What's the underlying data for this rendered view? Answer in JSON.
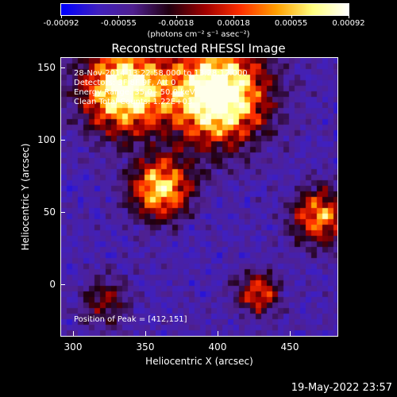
{
  "colorbar": {
    "ticks": [
      "-0.00092",
      "-0.00055",
      "-0.00018",
      "0.00018",
      "0.00055",
      "0.00092"
    ],
    "units": "(photons cm⁻² s⁻¹ asec⁻²)",
    "colors": [
      "#0000ff",
      "#4020c0",
      "#502090",
      "#200010",
      "#a00000",
      "#ff3000",
      "#ffa000",
      "#ffff80",
      "#ffffff"
    ]
  },
  "plot": {
    "title": "Reconstructed RHESSI Image",
    "xlabel": "Heliocentric X (arcsec)",
    "ylabel": "Heliocentric Y (arcsec)",
    "xticks": [
      "300",
      "350",
      "400",
      "450"
    ],
    "yticks": [
      "150",
      "100",
      "50",
      "0"
    ],
    "info_lines": [
      "28-Nov-2014 13:22:58.000 to 13:28:12.000",
      "Detectors: 3F 8F 9F, Att 0",
      "Energy Range: 35.0 - 50.0 keV",
      "Clean  Total Counts: 1.22E+03"
    ],
    "peak": "Position of Peak = [412,151]"
  },
  "footer": {
    "timestamp": "19-May-2022 23:57"
  }
}
